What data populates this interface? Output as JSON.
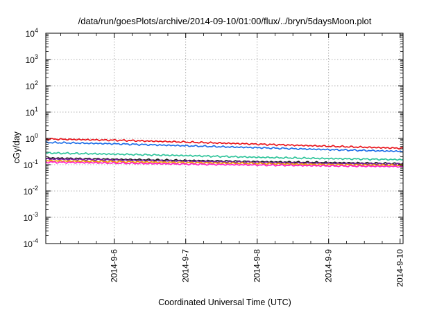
{
  "chart_data": {
    "type": "line",
    "title": "/data/run/goesPlots/archive/2014-09-10/01:00/flux/../bryn/5daysMoon.plot",
    "xlabel": "Coordinated Universal Time (UTC)",
    "ylabel": "cGy/day",
    "yscale": "log",
    "ylim": [
      0.0001,
      10000
    ],
    "xlim": [
      "2014-09-05 01:00",
      "2014-09-10 01:00"
    ],
    "x_ticks": [
      "2014-9-6",
      "2014-9-7",
      "2014-9-8",
      "2014-9-9",
      "2014-9-10"
    ],
    "y_ticks": [
      {
        "base": "10",
        "exp": "-4",
        "value": 0.0001
      },
      {
        "base": "10",
        "exp": "-3",
        "value": 0.001
      },
      {
        "base": "10",
        "exp": "-2",
        "value": 0.01
      },
      {
        "base": "10",
        "exp": "-1",
        "value": 0.1
      },
      {
        "base": "10",
        "exp": "0",
        "value": 1
      },
      {
        "base": "10",
        "exp": "1",
        "value": 10
      },
      {
        "base": "10",
        "exp": "2",
        "value": 100
      },
      {
        "base": "10",
        "exp": "3",
        "value": 1000
      },
      {
        "base": "10",
        "exp": "4",
        "value": 10000
      }
    ],
    "grid": true,
    "x": [
      "2014-09-05 01:00",
      "2014-09-06 01:00",
      "2014-09-07 01:00",
      "2014-09-08 01:00",
      "2014-09-09 01:00",
      "2014-09-10 01:00"
    ],
    "series": [
      {
        "color": "#e8141c",
        "values": [
          0.95,
          0.85,
          0.72,
          0.6,
          0.5,
          0.42
        ]
      },
      {
        "color": "#1f6fe8",
        "values": [
          0.7,
          0.62,
          0.52,
          0.44,
          0.37,
          0.32
        ]
      },
      {
        "color": "#2ec49a",
        "values": [
          0.28,
          0.25,
          0.22,
          0.19,
          0.17,
          0.155
        ]
      },
      {
        "color": "#222222",
        "values": [
          0.18,
          0.16,
          0.145,
          0.13,
          0.12,
          0.11
        ]
      },
      {
        "color": "#7b1fa2",
        "values": [
          0.165,
          0.15,
          0.135,
          0.122,
          0.112,
          0.104
        ]
      },
      {
        "color": "#f0a000",
        "values": [
          0.14,
          0.13,
          0.12,
          0.11,
          0.1,
          0.095
        ]
      },
      {
        "color": "#ff1ec8",
        "values": [
          0.125,
          0.115,
          0.105,
          0.097,
          0.09,
          0.085
        ]
      }
    ]
  }
}
